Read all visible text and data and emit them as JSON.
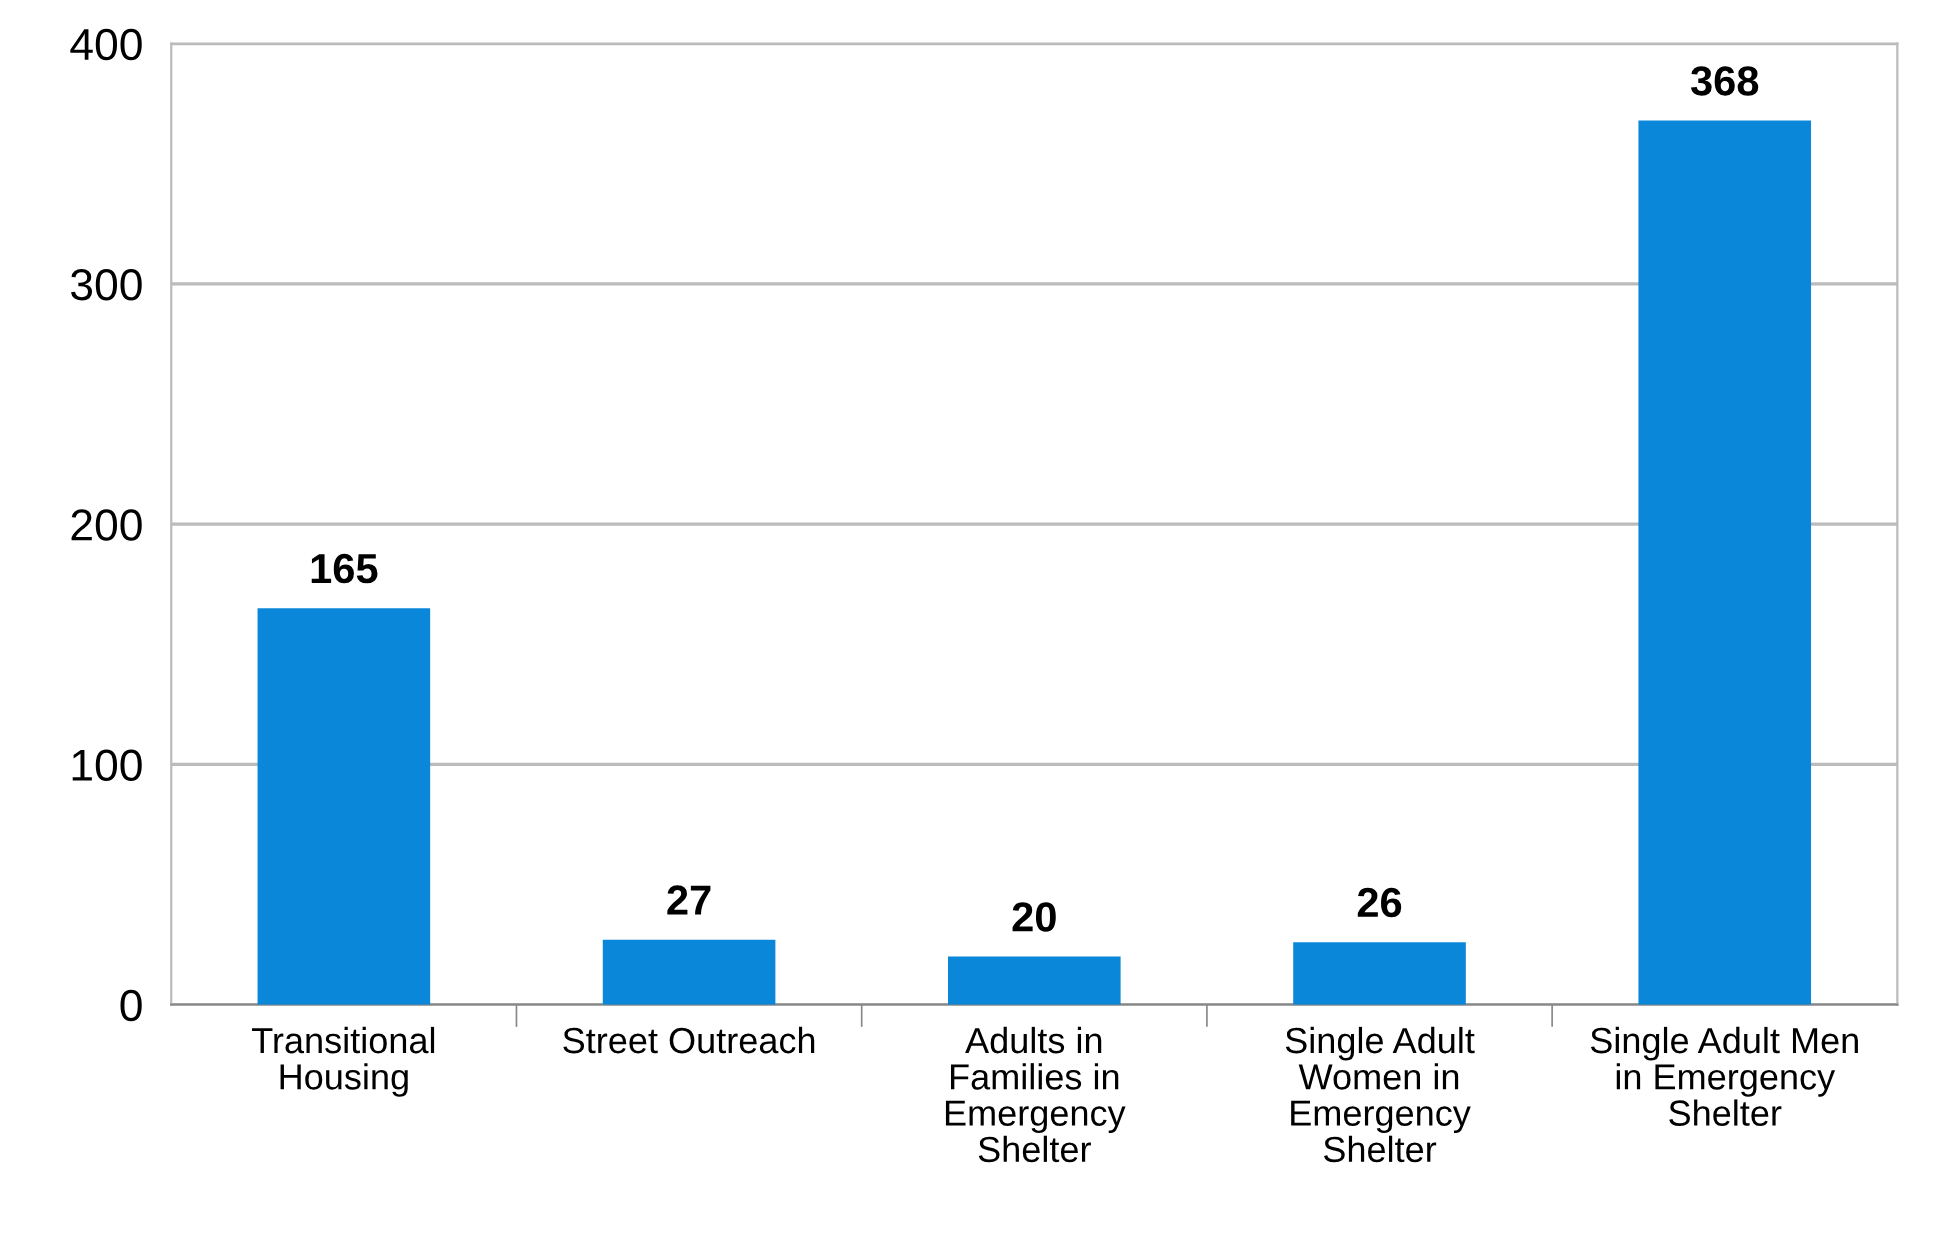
{
  "chart_data": {
    "type": "bar",
    "categories": [
      "Transitional\nHousing",
      "Street Outreach",
      "Adults in\nFamilies in\nEmergency\nShelter",
      "Single Adult\nWomen in\nEmergency\nShelter",
      "Single Adult Men\nin Emergency\nShelter"
    ],
    "values": [
      165,
      27,
      20,
      26,
      368
    ],
    "color": "#0a87d8",
    "ylim": [
      0,
      400
    ],
    "yticks": [
      0,
      100,
      200,
      300,
      400
    ],
    "grid": "y",
    "data_labels": true
  }
}
